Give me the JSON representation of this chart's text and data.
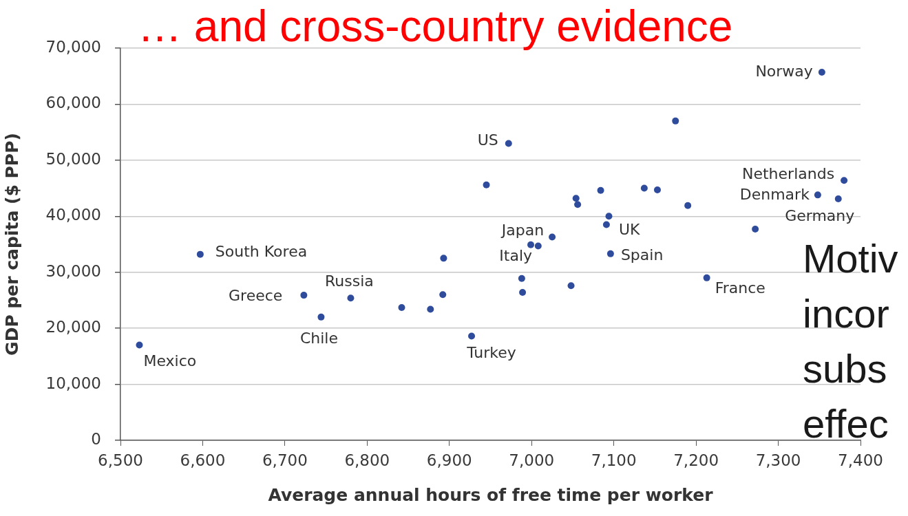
{
  "chart_data": {
    "type": "scatter",
    "title": "… and cross-country evidence",
    "xlabel": "Average annual hours of free time per worker",
    "ylabel": "GDP per capita ($ PPP)",
    "x": [
      6523,
      6597,
      6723,
      6744,
      6780,
      6842,
      6877,
      6892,
      6893,
      6927,
      6945,
      6972,
      6988,
      6989,
      6999,
      7008,
      7025,
      7048,
      7054,
      7056,
      7084,
      7091,
      7094,
      7096,
      7137,
      7153,
      7175,
      7190,
      7213,
      7272,
      7348,
      7353,
      7373,
      7380
    ],
    "values": [
      17000,
      33200,
      25900,
      22000,
      25400,
      23700,
      23400,
      26000,
      32500,
      18600,
      45600,
      53000,
      28900,
      26400,
      34900,
      34700,
      36300,
      27600,
      43200,
      42100,
      44600,
      38500,
      40000,
      33300,
      45000,
      44700,
      57000,
      41900,
      29000,
      37700,
      43800,
      65700,
      43100,
      46400
    ],
    "color": "#2f4c9c",
    "marker": "circle",
    "grid": "y",
    "xlim": [
      6500,
      7400
    ],
    "xticks": [
      {
        "value": 6500,
        "label": "6,500"
      },
      {
        "value": 6600,
        "label": "6,600"
      },
      {
        "value": 6700,
        "label": "6,700"
      },
      {
        "value": 6800,
        "label": "6,800"
      },
      {
        "value": 6900,
        "label": "6,900"
      },
      {
        "value": 7000,
        "label": "7,000"
      },
      {
        "value": 7100,
        "label": "7,100"
      },
      {
        "value": 7200,
        "label": "7,200"
      },
      {
        "value": 7300,
        "label": "7,300"
      },
      {
        "value": 7400,
        "label": "7,400"
      }
    ],
    "ylim": [
      0,
      70000
    ],
    "yticks": [
      0,
      {
        "value": 10000,
        "label": "10,000"
      },
      {
        "value": 20000,
        "label": "20,000"
      },
      {
        "value": 30000,
        "label": "30,000"
      },
      {
        "value": 40000,
        "label": "40,000"
      },
      {
        "value": 50000,
        "label": "50,000"
      },
      {
        "value": 60000,
        "label": "60,000"
      },
      {
        "value": 70000,
        "label": "70,000"
      }
    ],
    "annotations": [
      {
        "text": "Norway",
        "x": 7353,
        "y": 65700
      },
      {
        "text": "US",
        "x": 6972,
        "y": 53000
      },
      {
        "text": "Netherlands",
        "x": 7380,
        "y": 46400
      },
      {
        "text": "Denmark",
        "x": 7348,
        "y": 43800
      },
      {
        "text": "Germany",
        "x": 7373,
        "y": 43100
      },
      {
        "text": "Japan",
        "x": 7025,
        "y": 36300
      },
      {
        "text": "UK",
        "x": 7091,
        "y": 38500
      },
      {
        "text": "Italy",
        "x": 6999,
        "y": 34900
      },
      {
        "text": "Spain",
        "x": 7096,
        "y": 33300
      },
      {
        "text": "South Korea",
        "x": 6597,
        "y": 33200
      },
      {
        "text": "Greece",
        "x": 6723,
        "y": 25900
      },
      {
        "text": "Russia",
        "x": 6780,
        "y": 25400
      },
      {
        "text": "France",
        "x": 7213,
        "y": 29000
      },
      {
        "text": "Chile",
        "x": 6744,
        "y": 22000
      },
      {
        "text": "Turkey",
        "x": 6927,
        "y": 18600
      },
      {
        "text": "Mexico",
        "x": 6523,
        "y": 17000
      },
      "Motiv\nincor\nsubs\neffec"
    ]
  }
}
